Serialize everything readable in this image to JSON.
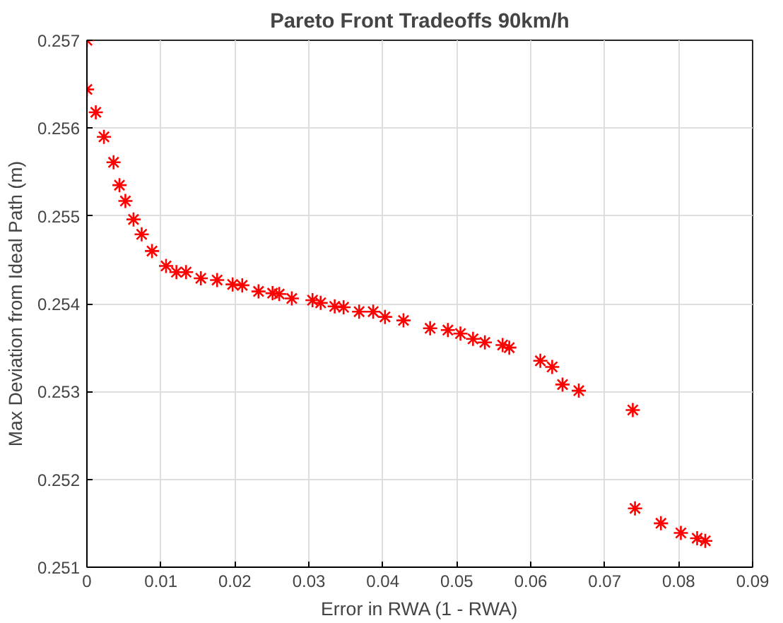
{
  "chart_data": {
    "type": "scatter",
    "title": "Pareto Front Tradeoffs 90km/h",
    "xlabel": "Error in RWA (1 - RWA)",
    "ylabel": "Max Deviation from Ideal Path (m)",
    "x": [
      0.0,
      0.0,
      0.0012,
      0.0023,
      0.0036,
      0.0044,
      0.0052,
      0.0063,
      0.0074,
      0.0088,
      0.0107,
      0.0121,
      0.0134,
      0.0154,
      0.0176,
      0.0197,
      0.021,
      0.0232,
      0.0251,
      0.026,
      0.0277,
      0.0305,
      0.0316,
      0.0335,
      0.0347,
      0.0368,
      0.0387,
      0.0403,
      0.0428,
      0.0464,
      0.0488,
      0.0505,
      0.0522,
      0.0538,
      0.0562,
      0.0571,
      0.0613,
      0.0629,
      0.0643,
      0.0665,
      0.0738,
      0.0741,
      0.0776,
      0.0803,
      0.0825,
      0.0836
    ],
    "series": [
      {
        "color": "#ff0000",
        "values": [
          0.257,
          0.25644,
          0.25618,
          0.2559,
          0.25561,
          0.25535,
          0.25517,
          0.25496,
          0.25479,
          0.2546,
          0.25443,
          0.25436,
          0.25436,
          0.25429,
          0.25427,
          0.25422,
          0.25421,
          0.25414,
          0.25412,
          0.25411,
          0.25406,
          0.25404,
          0.25401,
          0.25397,
          0.25396,
          0.25391,
          0.25391,
          0.25385,
          0.25381,
          0.25372,
          0.2537,
          0.25366,
          0.2536,
          0.25356,
          0.25353,
          0.2535,
          0.25335,
          0.25328,
          0.25308,
          0.25301,
          0.25279,
          0.25167,
          0.2515,
          0.25139,
          0.25133,
          0.2513
        ]
      }
    ],
    "xlim": [
      0,
      0.09
    ],
    "ylim": [
      0.251,
      0.257
    ],
    "xticks": [
      0,
      0.01,
      0.02,
      0.03,
      0.04,
      0.05,
      0.06,
      0.07,
      0.08,
      0.09
    ],
    "yticks": [
      0.251,
      0.252,
      0.253,
      0.254,
      0.255,
      0.256,
      0.257
    ],
    "grid": true,
    "marker": "cross"
  }
}
